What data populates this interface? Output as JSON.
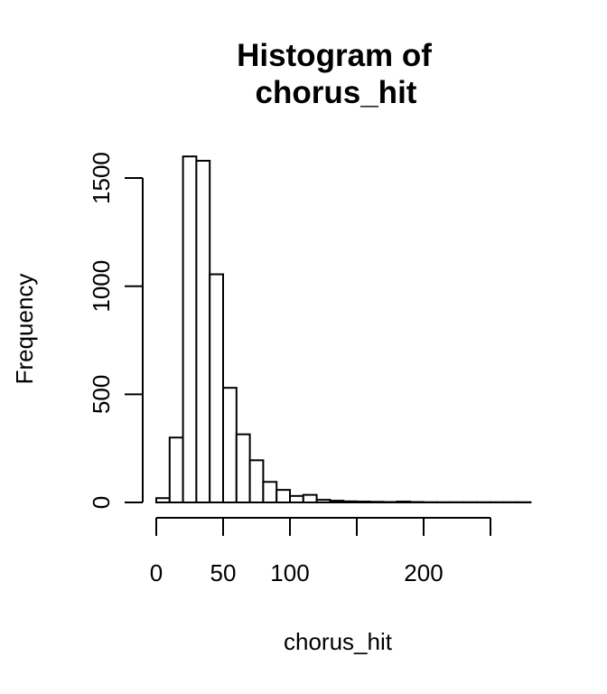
{
  "chart_data": {
    "type": "bar",
    "title_line1": "Histogram of",
    "title_line2": "chorus_hit",
    "xlabel": "chorus_hit",
    "ylabel": "Frequency",
    "bin_width": 10,
    "bins": [
      {
        "start": 0,
        "end": 10,
        "count": 20
      },
      {
        "start": 10,
        "end": 20,
        "count": 300
      },
      {
        "start": 20,
        "end": 30,
        "count": 1600
      },
      {
        "start": 30,
        "end": 40,
        "count": 1580
      },
      {
        "start": 40,
        "end": 50,
        "count": 1055
      },
      {
        "start": 50,
        "end": 60,
        "count": 530
      },
      {
        "start": 60,
        "end": 70,
        "count": 315
      },
      {
        "start": 70,
        "end": 80,
        "count": 195
      },
      {
        "start": 80,
        "end": 90,
        "count": 95
      },
      {
        "start": 90,
        "end": 100,
        "count": 58
      },
      {
        "start": 100,
        "end": 110,
        "count": 30
      },
      {
        "start": 110,
        "end": 120,
        "count": 35
      },
      {
        "start": 120,
        "end": 130,
        "count": 12
      },
      {
        "start": 130,
        "end": 140,
        "count": 8
      },
      {
        "start": 140,
        "end": 150,
        "count": 5
      },
      {
        "start": 150,
        "end": 160,
        "count": 4
      },
      {
        "start": 160,
        "end": 170,
        "count": 3
      },
      {
        "start": 170,
        "end": 180,
        "count": 2
      },
      {
        "start": 180,
        "end": 190,
        "count": 4
      },
      {
        "start": 190,
        "end": 200,
        "count": 2
      },
      {
        "start": 200,
        "end": 210,
        "count": 1
      },
      {
        "start": 210,
        "end": 220,
        "count": 1
      },
      {
        "start": 220,
        "end": 230,
        "count": 1
      },
      {
        "start": 230,
        "end": 240,
        "count": 1
      },
      {
        "start": 240,
        "end": 250,
        "count": 1
      },
      {
        "start": 250,
        "end": 260,
        "count": 1
      },
      {
        "start": 260,
        "end": 270,
        "count": 1
      },
      {
        "start": 270,
        "end": 280,
        "count": 1
      }
    ],
    "x_ticks": [
      0,
      50,
      100,
      150,
      200,
      250
    ],
    "x_tick_labels": [
      "0",
      "50",
      "100",
      "",
      "200",
      ""
    ],
    "y_ticks": [
      0,
      500,
      1000,
      1500
    ],
    "y_tick_labels": [
      "0",
      "500",
      "1000",
      "1500"
    ],
    "xlim": [
      0,
      280
    ],
    "ylim": [
      0,
      1600
    ],
    "grid": false,
    "bar_fill": "#ffffff",
    "bar_stroke": "#000000"
  }
}
